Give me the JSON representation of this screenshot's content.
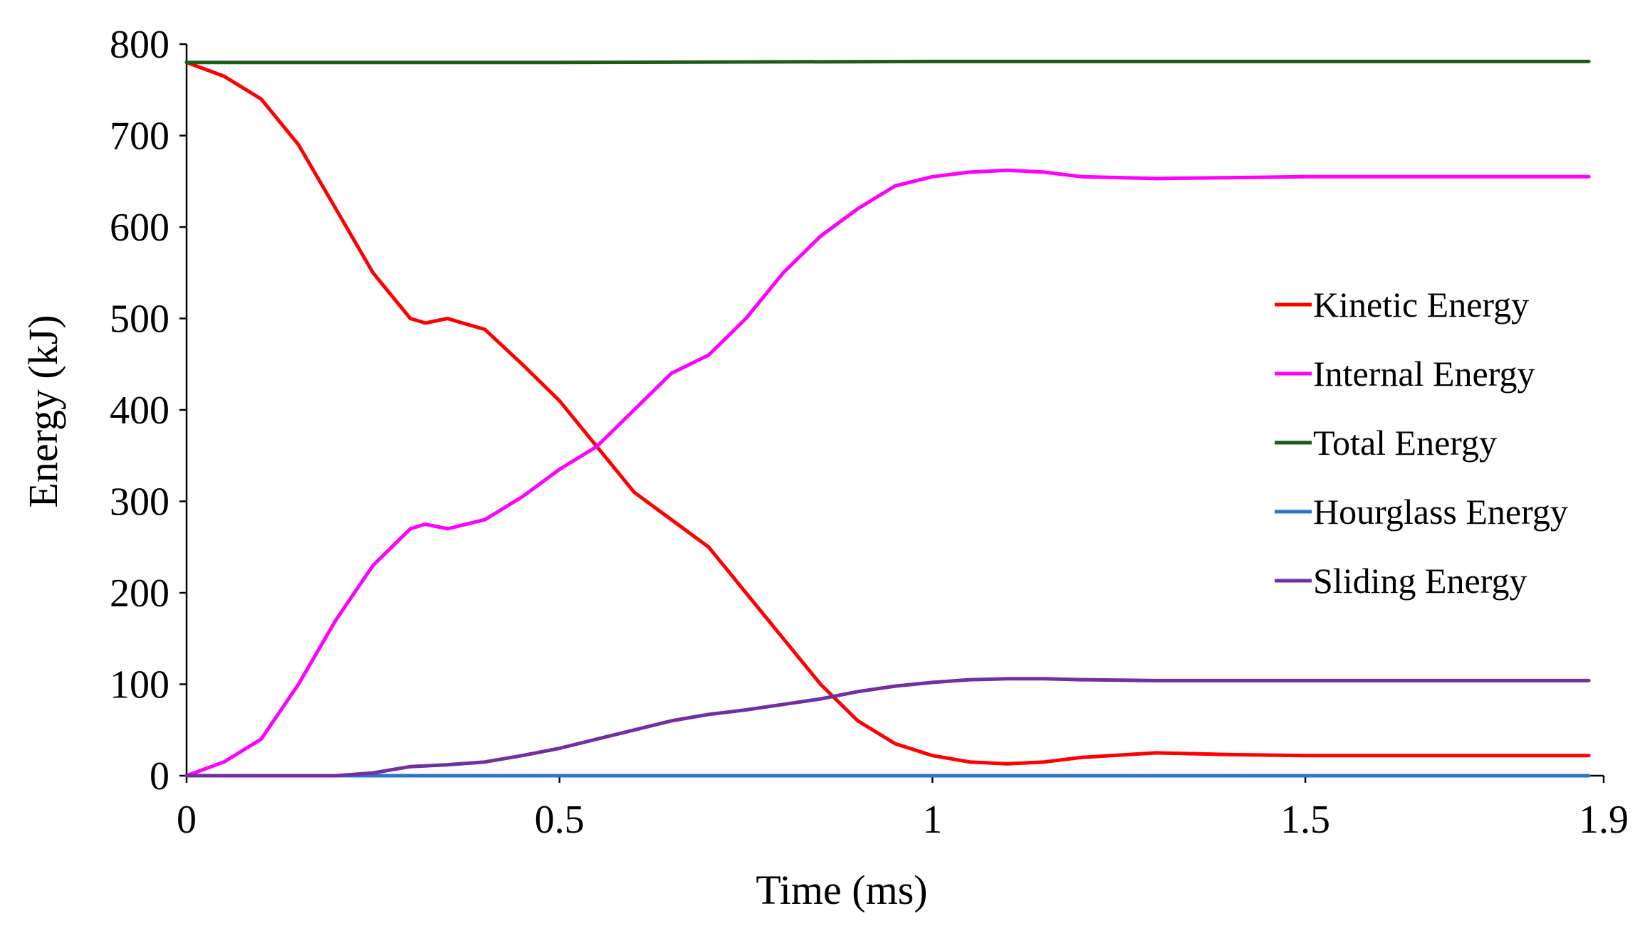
{
  "chart_data": {
    "type": "line",
    "title": "",
    "xlabel": "Time (ms)",
    "ylabel": "Energy (kJ)",
    "xlim": [
      0,
      1.9
    ],
    "ylim": [
      0,
      800
    ],
    "x_ticks": [
      0,
      0.5,
      1,
      1.5,
      1.9
    ],
    "x_tick_labels": [
      "0",
      "0.5",
      "1",
      "1.5",
      "1.9"
    ],
    "y_ticks": [
      0,
      100,
      200,
      300,
      400,
      500,
      600,
      700,
      800
    ],
    "y_tick_labels": [
      "0",
      "100",
      "200",
      "300",
      "400",
      "500",
      "600",
      "700",
      "800"
    ],
    "grid": false,
    "legend_position": "right",
    "series": [
      {
        "name": "Kinetic Energy",
        "color": "#ff0000",
        "points": [
          [
            0,
            780
          ],
          [
            0.05,
            765
          ],
          [
            0.1,
            740
          ],
          [
            0.15,
            690
          ],
          [
            0.2,
            620
          ],
          [
            0.25,
            550
          ],
          [
            0.3,
            500
          ],
          [
            0.32,
            495
          ],
          [
            0.35,
            500
          ],
          [
            0.37,
            495
          ],
          [
            0.4,
            488
          ],
          [
            0.45,
            450
          ],
          [
            0.5,
            410
          ],
          [
            0.55,
            360
          ],
          [
            0.6,
            310
          ],
          [
            0.65,
            280
          ],
          [
            0.7,
            250
          ],
          [
            0.75,
            200
          ],
          [
            0.8,
            150
          ],
          [
            0.85,
            100
          ],
          [
            0.9,
            60
          ],
          [
            0.95,
            35
          ],
          [
            1.0,
            22
          ],
          [
            1.05,
            15
          ],
          [
            1.1,
            13
          ],
          [
            1.15,
            15
          ],
          [
            1.2,
            20
          ],
          [
            1.3,
            25
          ],
          [
            1.4,
            23
          ],
          [
            1.5,
            22
          ],
          [
            1.6,
            22
          ],
          [
            1.7,
            22
          ],
          [
            1.8,
            22
          ],
          [
            1.88,
            22
          ]
        ]
      },
      {
        "name": "Internal Energy",
        "color": "#ff00ff",
        "points": [
          [
            0,
            0
          ],
          [
            0.05,
            15
          ],
          [
            0.1,
            40
          ],
          [
            0.15,
            100
          ],
          [
            0.2,
            170
          ],
          [
            0.25,
            230
          ],
          [
            0.3,
            270
          ],
          [
            0.32,
            275
          ],
          [
            0.35,
            270
          ],
          [
            0.4,
            280
          ],
          [
            0.45,
            305
          ],
          [
            0.5,
            335
          ],
          [
            0.55,
            360
          ],
          [
            0.6,
            400
          ],
          [
            0.65,
            440
          ],
          [
            0.7,
            460
          ],
          [
            0.75,
            500
          ],
          [
            0.8,
            550
          ],
          [
            0.85,
            590
          ],
          [
            0.9,
            620
          ],
          [
            0.95,
            645
          ],
          [
            1.0,
            655
          ],
          [
            1.05,
            660
          ],
          [
            1.1,
            662
          ],
          [
            1.15,
            660
          ],
          [
            1.2,
            655
          ],
          [
            1.3,
            653
          ],
          [
            1.4,
            654
          ],
          [
            1.5,
            655
          ],
          [
            1.6,
            655
          ],
          [
            1.7,
            655
          ],
          [
            1.8,
            655
          ],
          [
            1.88,
            655
          ]
        ]
      },
      {
        "name": "Total Energy",
        "color": "#1a5c1a",
        "points": [
          [
            0,
            780
          ],
          [
            0.5,
            780
          ],
          [
            1.0,
            781
          ],
          [
            1.5,
            781
          ],
          [
            1.88,
            781
          ]
        ]
      },
      {
        "name": "Hourglass Energy",
        "color": "#2e75c8",
        "points": [
          [
            0,
            0
          ],
          [
            0.5,
            0
          ],
          [
            1.0,
            0
          ],
          [
            1.5,
            0
          ],
          [
            1.88,
            0
          ]
        ]
      },
      {
        "name": "Sliding Energy",
        "color": "#7030a0",
        "points": [
          [
            0,
            0
          ],
          [
            0.15,
            0
          ],
          [
            0.2,
            0
          ],
          [
            0.25,
            3
          ],
          [
            0.3,
            10
          ],
          [
            0.35,
            12
          ],
          [
            0.4,
            15
          ],
          [
            0.45,
            22
          ],
          [
            0.5,
            30
          ],
          [
            0.55,
            40
          ],
          [
            0.6,
            50
          ],
          [
            0.65,
            60
          ],
          [
            0.7,
            67
          ],
          [
            0.75,
            72
          ],
          [
            0.8,
            78
          ],
          [
            0.85,
            84
          ],
          [
            0.9,
            92
          ],
          [
            0.95,
            98
          ],
          [
            1.0,
            102
          ],
          [
            1.05,
            105
          ],
          [
            1.1,
            106
          ],
          [
            1.15,
            106
          ],
          [
            1.2,
            105
          ],
          [
            1.3,
            104
          ],
          [
            1.4,
            104
          ],
          [
            1.5,
            104
          ],
          [
            1.6,
            104
          ],
          [
            1.7,
            104
          ],
          [
            1.8,
            104
          ],
          [
            1.88,
            104
          ]
        ]
      }
    ]
  }
}
